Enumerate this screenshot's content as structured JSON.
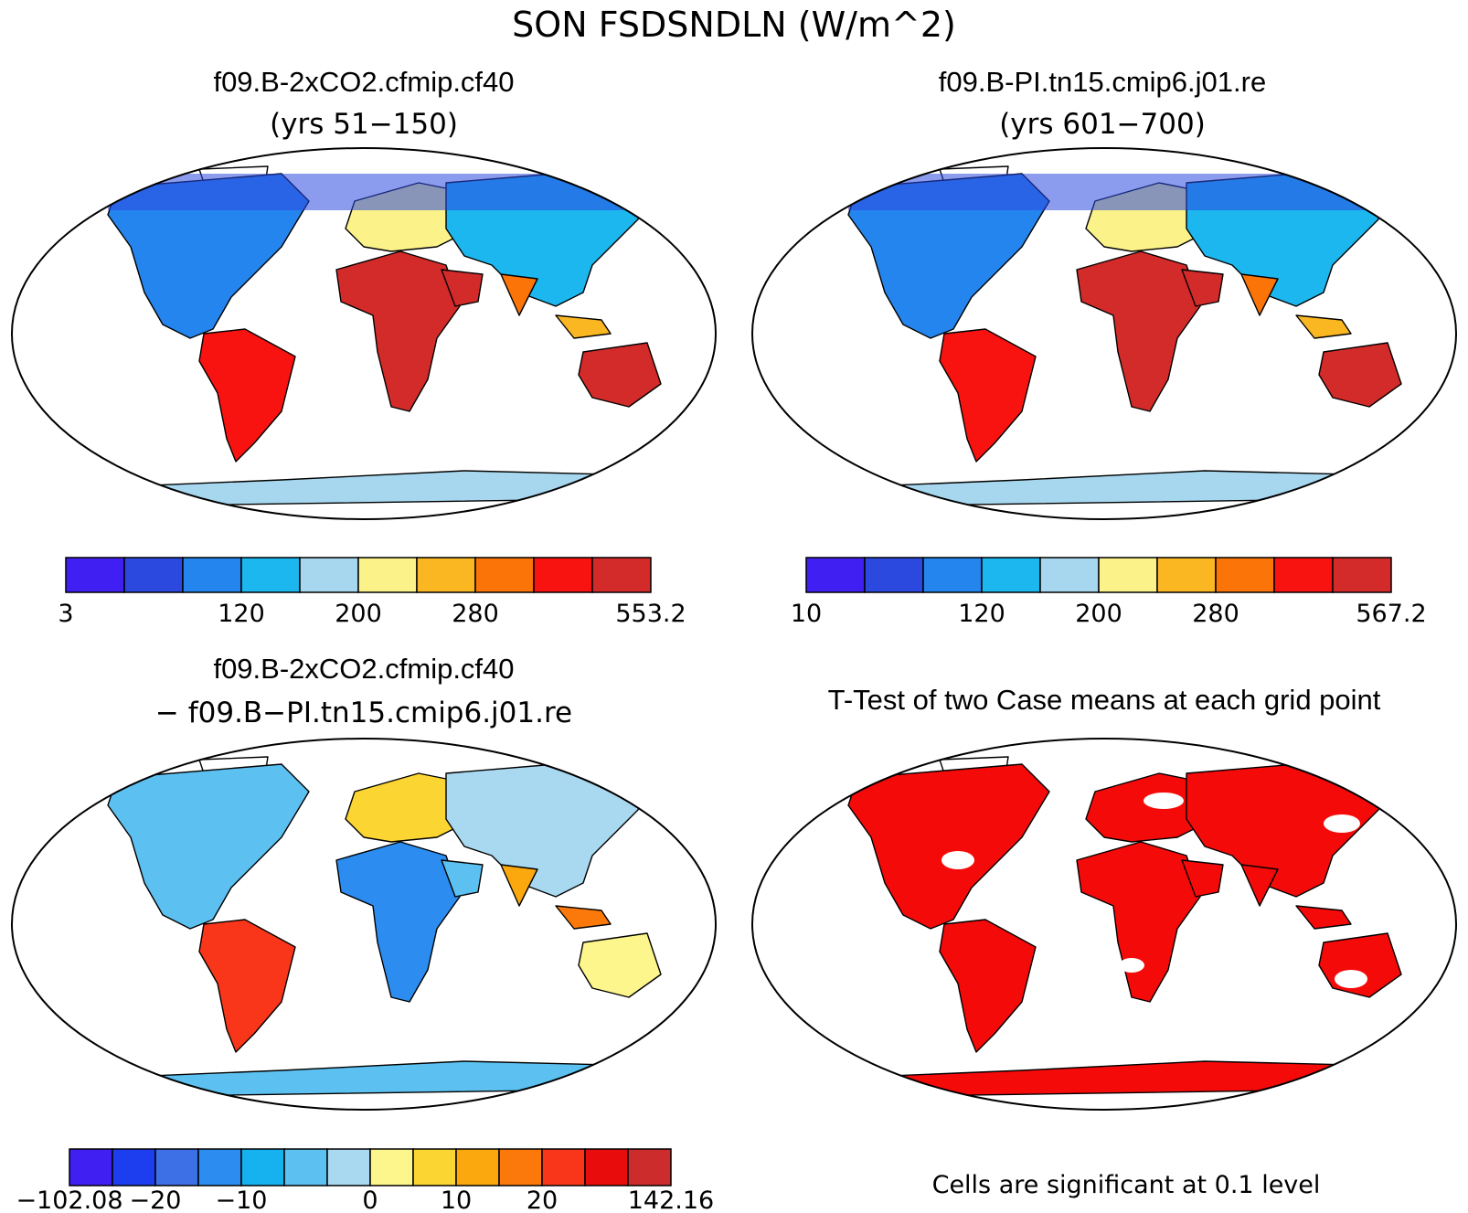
{
  "figure": {
    "title": "SON FSDSNDLN (W/m^2)"
  },
  "panels": [
    {
      "id": "case1",
      "case_name": "f09.B-2xCO2.cfmip.cf40",
      "subtitle": "(yrs 51−150)",
      "colorbar": {
        "colors": [
          "#3f1ff2",
          "#2b49de",
          "#2585ee",
          "#1cb7ef",
          "#a6d7ee",
          "#fbf28a",
          "#fbb722",
          "#fb7408",
          "#f81310",
          "#d32b2a"
        ],
        "tick_labels": [
          "3",
          "120",
          "200",
          "280",
          "553.2"
        ],
        "tick_boundary_index": [
          0,
          3,
          5,
          7,
          10
        ]
      }
    },
    {
      "id": "case2",
      "case_name": "f09.B-PI.tn15.cmip6.j01.re",
      "subtitle": "(yrs 601−700)",
      "colorbar": {
        "colors": [
          "#3f1ff2",
          "#2b49de",
          "#2585ee",
          "#1cb7ef",
          "#a6d7ee",
          "#fbf28a",
          "#fbb722",
          "#fb7408",
          "#f81310",
          "#d32b2a"
        ],
        "tick_labels": [
          "10",
          "120",
          "200",
          "280",
          "567.2"
        ],
        "tick_boundary_index": [
          0,
          3,
          5,
          7,
          10
        ]
      }
    },
    {
      "id": "diff",
      "case_name": "f09.B-2xCO2.cfmip.cf40",
      "subtitle": "− f09.B−PI.tn15.cmip6.j01.re",
      "colorbar": {
        "colors": [
          "#3f1ff2",
          "#1c3eef",
          "#3d6fe6",
          "#2c8cf0",
          "#16b2ef",
          "#5cc1f0",
          "#a8d9f0",
          "#fdf68c",
          "#fbd532",
          "#fba80e",
          "#fb790a",
          "#f9361a",
          "#e80c0c",
          "#cd2c2c"
        ],
        "tick_labels": [
          "−102.08",
          "−20",
          "−10",
          "0",
          "10",
          "20",
          "142.16"
        ],
        "tick_boundary_index": [
          0,
          2,
          4,
          7,
          9,
          11,
          14
        ]
      }
    },
    {
      "id": "ttest",
      "title": "T-Test of two Case means at each grid point",
      "note": "Cells are significant at 0.1 level",
      "significant_color": "#f50a0a"
    }
  ],
  "map_palette": {
    "polar": "#2b49de",
    "subpolar": "#2585ee",
    "cool": "#1cb7ef",
    "mild": "#a6d7ee",
    "temperate": "#fbf28a",
    "warm": "#fbb722",
    "hot": "#fb7408",
    "very_hot": "#f81310",
    "desert": "#d32b2a"
  }
}
